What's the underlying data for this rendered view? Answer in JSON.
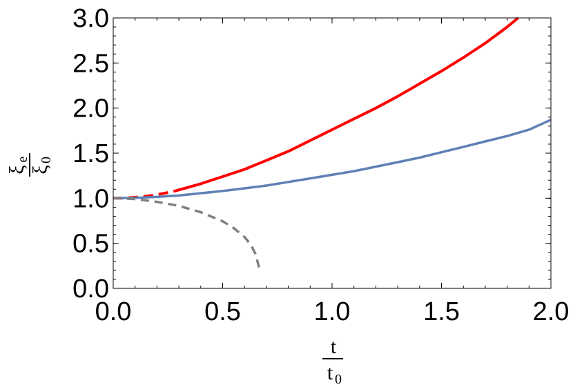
{
  "chart_data": {
    "type": "line",
    "title": "",
    "xlabel": {
      "numerator": "t",
      "denominator_main": "t",
      "denominator_sub": "0"
    },
    "ylabel": {
      "numerator_main": "ξ",
      "numerator_sub": "e",
      "denominator_main": "ξ",
      "denominator_sub": "0"
    },
    "xlim": [
      0,
      2
    ],
    "ylim": [
      0,
      3
    ],
    "x_ticks": [
      {
        "value": 0,
        "label": "0.0"
      },
      {
        "value": 0.5,
        "label": "0.5"
      },
      {
        "value": 1,
        "label": "1.0"
      },
      {
        "value": 1.5,
        "label": "1.5"
      },
      {
        "value": 2,
        "label": "2.0"
      }
    ],
    "y_ticks": [
      {
        "value": 0,
        "label": "0.0"
      },
      {
        "value": 0.5,
        "label": "0.5"
      },
      {
        "value": 1,
        "label": "1.0"
      },
      {
        "value": 1.5,
        "label": "1.5"
      },
      {
        "value": 2,
        "label": "2.0"
      },
      {
        "value": 2.5,
        "label": "2.5"
      },
      {
        "value": 3,
        "label": "3.0"
      }
    ],
    "x_minor_step": 0.1,
    "y_minor_step": 0.1,
    "grid": false,
    "series": [
      {
        "color": "#ff0000",
        "style": "dashed",
        "x": [
          0.0,
          0.05,
          0.1,
          0.15,
          0.2,
          0.25,
          0.28
        ],
        "y": [
          1.0,
          1.002,
          1.01,
          1.022,
          1.04,
          1.063,
          1.078
        ]
      },
      {
        "color": "#ff0000",
        "style": "solid",
        "x": [
          0.28,
          0.4,
          0.5,
          0.6,
          0.7,
          0.8,
          0.9,
          1.0,
          1.1,
          1.2,
          1.3,
          1.4,
          1.5,
          1.6,
          1.7,
          1.8,
          1.85
        ],
        "y": [
          1.078,
          1.16,
          1.24,
          1.32,
          1.42,
          1.52,
          1.64,
          1.76,
          1.88,
          2.0,
          2.13,
          2.27,
          2.41,
          2.56,
          2.72,
          2.9,
          3.0
        ]
      },
      {
        "color": "#5e81b5",
        "style": "solid",
        "x": [
          0.0,
          0.1,
          0.2,
          0.3,
          0.4,
          0.5,
          0.6,
          0.7,
          0.8,
          0.9,
          1.0,
          1.1,
          1.2,
          1.3,
          1.4,
          1.5,
          1.6,
          1.7,
          1.8,
          1.9,
          2.0
        ],
        "y": [
          1.0,
          1.003,
          1.015,
          1.03,
          1.055,
          1.08,
          1.11,
          1.14,
          1.18,
          1.22,
          1.26,
          1.3,
          1.35,
          1.4,
          1.45,
          1.51,
          1.57,
          1.63,
          1.69,
          1.76,
          1.87
        ]
      },
      {
        "color": "#808080",
        "style": "dashed",
        "x": [
          0.0,
          0.1,
          0.2,
          0.3,
          0.4,
          0.5,
          0.55,
          0.6,
          0.63,
          0.65,
          0.67
        ],
        "y": [
          1.0,
          0.99,
          0.96,
          0.915,
          0.845,
          0.745,
          0.67,
          0.57,
          0.48,
          0.38,
          0.2
        ]
      }
    ]
  }
}
